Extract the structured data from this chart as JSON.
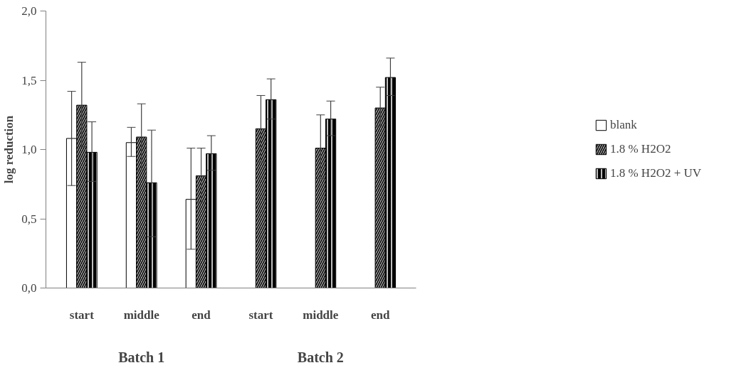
{
  "chart_data": {
    "type": "bar",
    "ylabel": "log reduction",
    "categories": [
      "start",
      "middle",
      "end",
      "start",
      "middle",
      "end"
    ],
    "series": [
      {
        "name": "blank",
        "color": "#ffffff",
        "values": [
          1.08,
          1.05,
          0.64,
          null,
          null,
          null
        ],
        "errors": [
          [
            0.74,
            1.42
          ],
          [
            0.95,
            1.16
          ],
          [
            0.28,
            1.01
          ],
          null,
          null,
          null
        ]
      },
      {
        "name": "1.8 % H2O2",
        "color": "#b0b0b0",
        "values": [
          1.32,
          1.09,
          0.81,
          1.15,
          1.01,
          1.3
        ],
        "errors": [
          [
            1.02,
            1.63
          ],
          [
            0.85,
            1.33
          ],
          [
            0.62,
            1.01
          ],
          [
            0.91,
            1.39
          ],
          [
            0.79,
            1.25
          ],
          [
            1.17,
            1.45
          ]
        ]
      },
      {
        "name": "1.8 % H2O2 + UV",
        "color": "#000000",
        "values": [
          0.98,
          0.76,
          0.97,
          1.36,
          1.22,
          1.52
        ],
        "errors": [
          [
            0.77,
            1.2
          ],
          [
            0.37,
            1.14
          ],
          [
            0.85,
            1.1
          ],
          [
            1.22,
            1.51
          ],
          [
            1.1,
            1.35
          ],
          [
            1.39,
            1.66
          ]
        ]
      }
    ],
    "ylim": [
      0,
      2.0
    ],
    "yticks": [
      {
        "value": 0,
        "label": "0,0"
      },
      {
        "value": 0.5,
        "label": "0,5"
      },
      {
        "value": 1.0,
        "label": "1,0"
      },
      {
        "value": 1.5,
        "label": "1,5"
      },
      {
        "value": 2.0,
        "label": "2,0"
      }
    ],
    "annotations": [
      "Batch 1",
      "Batch 2"
    ],
    "legend": "right",
    "grid": false
  }
}
